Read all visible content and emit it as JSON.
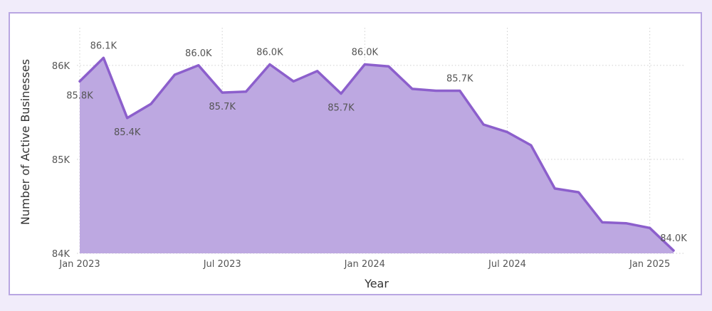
{
  "chart_data": {
    "type": "area",
    "xlabel": "Year",
    "ylabel": "Number of Active Businesses",
    "ylim": [
      84000,
      86400
    ],
    "yticks": [
      {
        "value": 84000,
        "label": "84K"
      },
      {
        "value": 85000,
        "label": "85K"
      },
      {
        "value": 86000,
        "label": "86K"
      }
    ],
    "xticks": [
      {
        "index": 0,
        "label": "Jan 2023"
      },
      {
        "index": 6,
        "label": "Jul 2023"
      },
      {
        "index": 12,
        "label": "Jan 2024"
      },
      {
        "index": 18,
        "label": "Jul 2024"
      },
      {
        "index": 24,
        "label": "Jan 2025"
      }
    ],
    "x": [
      "2023-01",
      "2023-02",
      "2023-03",
      "2023-04",
      "2023-05",
      "2023-06",
      "2023-07",
      "2023-08",
      "2023-09",
      "2023-10",
      "2023-11",
      "2023-12",
      "2024-01",
      "2024-02",
      "2024-03",
      "2024-04",
      "2024-05",
      "2024-06",
      "2024-07",
      "2024-08",
      "2024-09",
      "2024-10",
      "2024-11",
      "2024-12",
      "2025-01",
      "2025-02"
    ],
    "series": [
      {
        "values": [
          85830,
          86080,
          85440,
          85590,
          85900,
          86000,
          85710,
          85720,
          86010,
          85830,
          85940,
          85700,
          86010,
          85990,
          85750,
          85730,
          85730,
          85370,
          85290,
          85150,
          84690,
          84650,
          84330,
          84320,
          84270,
          84030
        ]
      }
    ],
    "data_labels": [
      {
        "index": 0,
        "text": "85.8K"
      },
      {
        "index": 1,
        "text": "86.1K"
      },
      {
        "index": 2,
        "text": "85.4K"
      },
      {
        "index": 5,
        "text": "86.0K"
      },
      {
        "index": 6,
        "text": "85.7K"
      },
      {
        "index": 8,
        "text": "86.0K"
      },
      {
        "index": 11,
        "text": "85.7K"
      },
      {
        "index": 12,
        "text": "86.0K"
      },
      {
        "index": 16,
        "text": "85.7K"
      },
      {
        "index": 25,
        "text": "84.0K"
      }
    ],
    "grid": true,
    "colors": {
      "line": "#8c5fcc",
      "fill": "#bda8e1",
      "grid": "#cfcfcf"
    }
  }
}
